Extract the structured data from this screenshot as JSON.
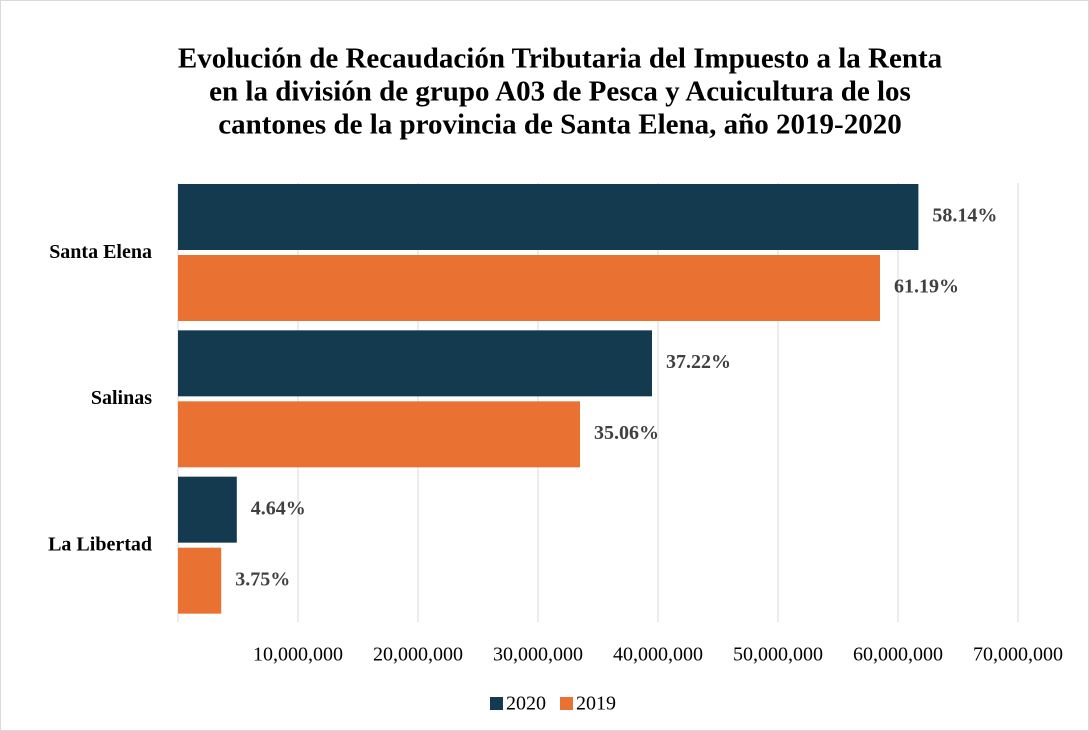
{
  "chart_data": {
    "type": "bar",
    "orientation": "horizontal",
    "title": [
      "Evolución de Recaudación Tributaria del Impuesto a la Renta",
      "en la división de grupo A03 de Pesca y Acuicultura  de los",
      "cantones de la provincia de Santa Elena, año 2019-2020"
    ],
    "categories": [
      "Santa Elena",
      "Salinas",
      "La Libertad"
    ],
    "series": [
      {
        "name": "2020",
        "color": "#133a4f",
        "values": [
          61700000,
          39500000,
          4900000
        ],
        "value_labels": [
          "58.14%",
          "37.22%",
          "4.64%"
        ]
      },
      {
        "name": "2019",
        "color": "#e97132",
        "values": [
          58500000,
          33500000,
          3600000
        ],
        "value_labels": [
          "61.19%",
          "35.06%",
          "3.75%"
        ]
      }
    ],
    "xlim": [
      0,
      70000000
    ],
    "xticks": [
      {
        "value": 10000000,
        "label": "10,000,000"
      },
      {
        "value": 20000000,
        "label": "20,000,000"
      },
      {
        "value": 30000000,
        "label": "30,000,000"
      },
      {
        "value": 40000000,
        "label": "40,000,000"
      },
      {
        "value": 50000000,
        "label": "50,000,000"
      },
      {
        "value": 60000000,
        "label": "60,000,000"
      },
      {
        "value": 70000000,
        "label": "70,000,000"
      }
    ],
    "grid": true,
    "legend": "bottom"
  }
}
